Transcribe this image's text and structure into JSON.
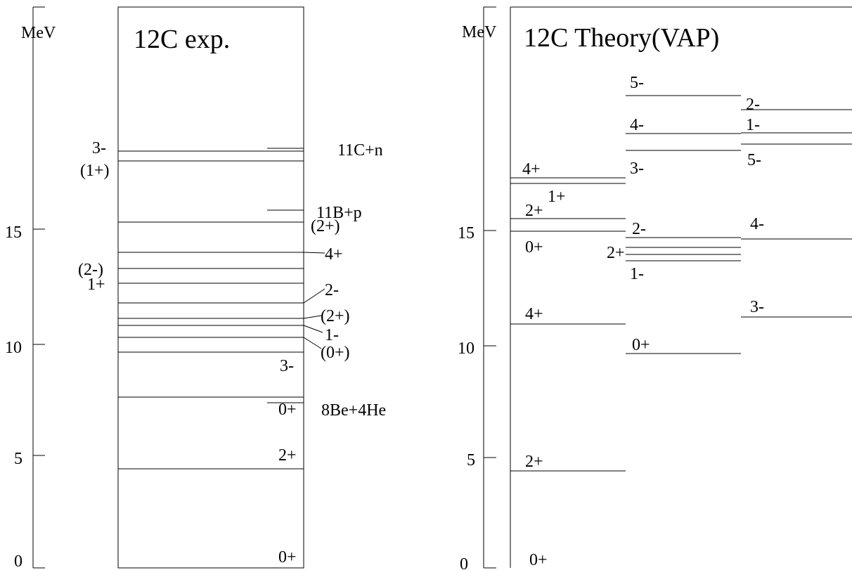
{
  "left_panel": {
    "unit": "MeV",
    "title": "12C exp.",
    "ticks": [
      "15",
      "10",
      "5",
      "0"
    ],
    "levels": [
      {
        "label": "0+"
      },
      {
        "label": "2+"
      },
      {
        "label": "0+"
      },
      {
        "label": "3-"
      },
      {
        "label": "(0+)"
      },
      {
        "label": "1-"
      },
      {
        "label": "(2+)"
      },
      {
        "label": "2-"
      },
      {
        "label": "1+"
      },
      {
        "label": "(2-)"
      },
      {
        "label": "4+"
      },
      {
        "label": "(2+)"
      },
      {
        "label": "(1+)"
      },
      {
        "label": "3-"
      }
    ],
    "thresholds": [
      {
        "label": "8Be+4He"
      },
      {
        "label": "11B+p"
      },
      {
        "label": "11C+n"
      }
    ]
  },
  "right_panel": {
    "unit": "MeV",
    "title": "12C Theory(VAP)",
    "ticks": [
      "15",
      "10",
      "5",
      "0"
    ],
    "columns": [
      {
        "levels": [
          {
            "label": "0+"
          },
          {
            "label": "2+"
          },
          {
            "label": "4+"
          },
          {
            "label": "0+"
          },
          {
            "label": "2+"
          },
          {
            "label": "1+"
          },
          {
            "label": "4+"
          }
        ]
      },
      {
        "levels": [
          {
            "label": "0+"
          },
          {
            "label": "1-"
          },
          {
            "label": "2+"
          },
          {
            "label": "2-"
          },
          {
            "label": "3-"
          },
          {
            "label": "4-"
          },
          {
            "label": "5-"
          }
        ]
      },
      {
        "levels": [
          {
            "label": "3-"
          },
          {
            "label": "4-"
          },
          {
            "label": "5-"
          },
          {
            "label": "1-"
          },
          {
            "label": "2-"
          }
        ]
      }
    ]
  }
}
